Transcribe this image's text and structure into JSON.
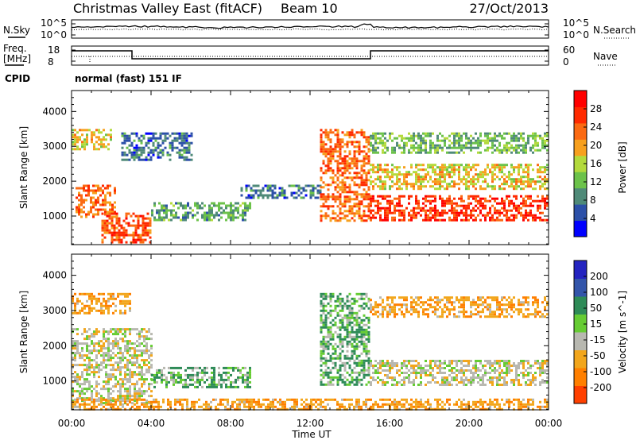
{
  "header": {
    "title": "Christmas Valley East (fitACF)",
    "beam": "Beam 10",
    "date": "27/Oct/2013"
  },
  "top_panels": {
    "nsky_label": "N.Sky",
    "nsearch_label": "N.Search",
    "noise_ticks_left": [
      "10^5",
      "10^0"
    ],
    "noise_ticks_right": [
      "10^5",
      "10^0"
    ],
    "freq_label_1": "Freq.",
    "freq_label_2": "[MHz]",
    "freq_ticks": [
      "18",
      "8"
    ],
    "nave_label": "Nave",
    "nave_ticks": [
      "60",
      "0"
    ],
    "cpid_label": "CPID",
    "cpid_value": "normal (fast) 151 IF"
  },
  "colors": {
    "power_scale": [
      "#0000ff",
      "#2c50a8",
      "#4f8a78",
      "#6cc24a",
      "#b3da3c",
      "#f7a01e",
      "#fb6a12",
      "#ff2a00",
      "#ff0000"
    ],
    "velocity_scale": [
      "#2424c0",
      "#3355aa",
      "#2e8b57",
      "#66cc33",
      "#b8b8b0",
      "#f2a61c",
      "#ff7f00",
      "#ff4000",
      "#ff0000"
    ]
  },
  "chart_data": [
    {
      "type": "heatmap",
      "name": "power",
      "xlabel": "Time UT",
      "ylabel": "Slant Range [km]",
      "x_ticks": [
        "00:00",
        "04:00",
        "08:00",
        "12:00",
        "16:00",
        "20:00",
        "00:00"
      ],
      "y_ticks": [
        "1000",
        "2000",
        "3000",
        "4000"
      ],
      "xlim_hours": [
        0,
        24
      ],
      "ylim_km": [
        180,
        4600
      ],
      "colorbar_label": "Power [dB]",
      "colorbar_ticks": [
        "28",
        "24",
        "20",
        "16",
        "12",
        "8",
        "4"
      ],
      "colorbar_range": [
        0,
        32
      ],
      "echo_regions": [
        {
          "t": [
            0.2,
            2.2
          ],
          "r": [
            1000,
            1900
          ],
          "level": 24
        },
        {
          "t": [
            1.5,
            4.0
          ],
          "r": [
            250,
            1100
          ],
          "level": 26
        },
        {
          "t": [
            0.0,
            2.0
          ],
          "r": [
            2900,
            3500
          ],
          "level": 18
        },
        {
          "t": [
            2.5,
            6.0
          ],
          "r": [
            2600,
            3400
          ],
          "level": 6
        },
        {
          "t": [
            4.0,
            9.0
          ],
          "r": [
            900,
            1400
          ],
          "level": 10
        },
        {
          "t": [
            8.5,
            12.5
          ],
          "r": [
            1500,
            1900
          ],
          "level": 6
        },
        {
          "t": [
            12.5,
            15.0
          ],
          "r": [
            900,
            3500
          ],
          "level": 24
        },
        {
          "t": [
            15.0,
            24.0
          ],
          "r": [
            900,
            1600
          ],
          "level": 28
        },
        {
          "t": [
            15.0,
            24.0
          ],
          "r": [
            1800,
            2500
          ],
          "level": 18
        },
        {
          "t": [
            15.0,
            24.0
          ],
          "r": [
            2800,
            3400
          ],
          "level": 12
        }
      ]
    },
    {
      "type": "heatmap",
      "name": "velocity",
      "xlabel": "Time UT",
      "ylabel": "Slant Range [km]",
      "x_ticks": [
        "00:00",
        "04:00",
        "08:00",
        "12:00",
        "16:00",
        "20:00",
        "00:00"
      ],
      "y_ticks": [
        "1000",
        "2000",
        "3000",
        "4000"
      ],
      "xlim_hours": [
        0,
        24
      ],
      "ylim_km": [
        180,
        4600
      ],
      "colorbar_label": "Velocity [m s^-1]",
      "colorbar_ticks": [
        "200",
        "100",
        "50",
        "15",
        "-15",
        "-50",
        "-100",
        "-200"
      ],
      "colorbar_range": [
        -250,
        250
      ],
      "echo_regions": [
        {
          "t": [
            0.0,
            4.0
          ],
          "r": [
            400,
            2500
          ],
          "v": 0
        },
        {
          "t": [
            0.0,
            3.0
          ],
          "r": [
            2900,
            3500
          ],
          "v": -40
        },
        {
          "t": [
            4.0,
            9.0
          ],
          "r": [
            800,
            1400
          ],
          "v": 30
        },
        {
          "t": [
            12.5,
            15.0
          ],
          "r": [
            900,
            3500
          ],
          "v": 30
        },
        {
          "t": [
            15.0,
            24.0
          ],
          "r": [
            900,
            1600
          ],
          "v": 0
        },
        {
          "t": [
            15.0,
            24.0
          ],
          "r": [
            2800,
            3400
          ],
          "v": -40
        },
        {
          "t": [
            0.0,
            24.0
          ],
          "r": [
            180,
            500
          ],
          "v": -40
        }
      ]
    }
  ]
}
